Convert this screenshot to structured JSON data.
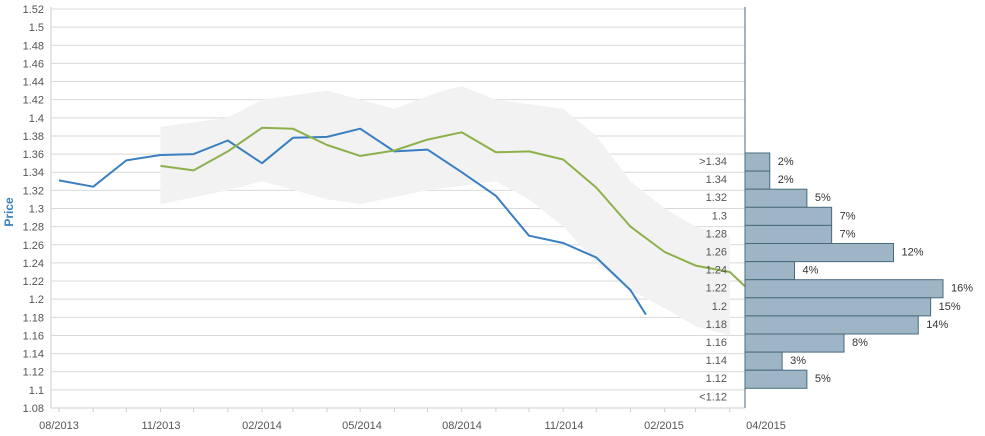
{
  "chart_data": {
    "type": "line",
    "ylabel": "Price",
    "ylim": [
      1.08,
      1.52
    ],
    "y_ticks": [
      "1.08",
      "1.1",
      "1.12",
      "1.14",
      "1.16",
      "1.18",
      "1.2",
      "1.22",
      "1.24",
      "1.26",
      "1.28",
      "1.3",
      "1.32",
      "1.34",
      "1.36",
      "1.38",
      "1.4",
      "1.42",
      "1.44",
      "1.46",
      "1.48",
      "1.5",
      "1.52"
    ],
    "x_tick_labels": [
      "08/2013",
      "11/2013",
      "02/2014",
      "05/2014",
      "08/2014",
      "11/2014",
      "02/2015",
      "04/2015"
    ],
    "grid": true,
    "series": [
      {
        "color": "#3a7fc1",
        "points": [
          {
            "x": "2013-08-01",
            "y": 1.331
          },
          {
            "x": "2013-09-01",
            "y": 1.324
          },
          {
            "x": "2013-10-01",
            "y": 1.353
          },
          {
            "x": "2013-11-01",
            "y": 1.359
          },
          {
            "x": "2013-12-01",
            "y": 1.36
          },
          {
            "x": "2014-01-01",
            "y": 1.375
          },
          {
            "x": "2014-02-01",
            "y": 1.35
          },
          {
            "x": "2014-03-01",
            "y": 1.378
          },
          {
            "x": "2014-04-01",
            "y": 1.379
          },
          {
            "x": "2014-05-01",
            "y": 1.388
          },
          {
            "x": "2014-06-01",
            "y": 1.363
          },
          {
            "x": "2014-07-01",
            "y": 1.365
          },
          {
            "x": "2014-08-01",
            "y": 1.34
          },
          {
            "x": "2014-09-01",
            "y": 1.314
          },
          {
            "x": "2014-10-01",
            "y": 1.27
          },
          {
            "x": "2014-11-01",
            "y": 1.262
          },
          {
            "x": "2014-12-01",
            "y": 1.246
          },
          {
            "x": "2015-01-01",
            "y": 1.21
          },
          {
            "x": "2015-01-15",
            "y": 1.183
          }
        ]
      },
      {
        "color": "#8db04c",
        "points": [
          {
            "x": "2013-11-01",
            "y": 1.347
          },
          {
            "x": "2013-12-01",
            "y": 1.342
          },
          {
            "x": "2014-01-01",
            "y": 1.363
          },
          {
            "x": "2014-02-01",
            "y": 1.389
          },
          {
            "x": "2014-03-01",
            "y": 1.388
          },
          {
            "x": "2014-04-01",
            "y": 1.37
          },
          {
            "x": "2014-05-01",
            "y": 1.358
          },
          {
            "x": "2014-06-01",
            "y": 1.364
          },
          {
            "x": "2014-07-01",
            "y": 1.376
          },
          {
            "x": "2014-08-01",
            "y": 1.384
          },
          {
            "x": "2014-09-01",
            "y": 1.362
          },
          {
            "x": "2014-10-01",
            "y": 1.363
          },
          {
            "x": "2014-11-01",
            "y": 1.354
          },
          {
            "x": "2014-12-01",
            "y": 1.323
          },
          {
            "x": "2015-01-01",
            "y": 1.28
          },
          {
            "x": "2015-02-01",
            "y": 1.252
          },
          {
            "x": "2015-03-01",
            "y": 1.237
          },
          {
            "x": "2015-04-01",
            "y": 1.23
          },
          {
            "x": "2015-04-15",
            "y": 1.214
          }
        ]
      }
    ],
    "band": {
      "color": "#f2f2f2",
      "upper": [
        {
          "x": "2013-11-01",
          "y": 1.39
        },
        {
          "x": "2014-01-01",
          "y": 1.4
        },
        {
          "x": "2014-02-01",
          "y": 1.42
        },
        {
          "x": "2014-04-01",
          "y": 1.43
        },
        {
          "x": "2014-06-01",
          "y": 1.41
        },
        {
          "x": "2014-07-15",
          "y": 1.43
        },
        {
          "x": "2014-08-01",
          "y": 1.435
        },
        {
          "x": "2014-09-01",
          "y": 1.42
        },
        {
          "x": "2014-11-01",
          "y": 1.41
        },
        {
          "x": "2014-12-01",
          "y": 1.38
        },
        {
          "x": "2015-01-01",
          "y": 1.33
        },
        {
          "x": "2015-02-01",
          "y": 1.3
        },
        {
          "x": "2015-03-01",
          "y": 1.28
        },
        {
          "x": "2015-04-01",
          "y": 1.27
        }
      ],
      "lower": [
        {
          "x": "2015-04-01",
          "y": 1.16
        },
        {
          "x": "2015-03-01",
          "y": 1.17
        },
        {
          "x": "2015-02-01",
          "y": 1.19
        },
        {
          "x": "2015-01-01",
          "y": 1.21
        },
        {
          "x": "2014-12-01",
          "y": 1.24
        },
        {
          "x": "2014-11-01",
          "y": 1.28
        },
        {
          "x": "2014-10-01",
          "y": 1.31
        },
        {
          "x": "2014-09-01",
          "y": 1.33
        },
        {
          "x": "2014-07-01",
          "y": 1.32
        },
        {
          "x": "2014-05-01",
          "y": 1.305
        },
        {
          "x": "2014-04-01",
          "y": 1.31
        },
        {
          "x": "2014-02-01",
          "y": 1.33
        },
        {
          "x": "2014-01-01",
          "y": 1.32
        },
        {
          "x": "2013-11-01",
          "y": 1.305
        }
      ]
    },
    "histogram": {
      "color": "#9db5c4",
      "bins": [
        {
          "label": ">1.34",
          "pct": "2%",
          "value": 2
        },
        {
          "label": "1.34",
          "pct": "2%",
          "value": 2
        },
        {
          "label": "1.32",
          "pct": "5%",
          "value": 5
        },
        {
          "label": "1.3",
          "pct": "7%",
          "value": 7
        },
        {
          "label": "1.28",
          "pct": "7%",
          "value": 7
        },
        {
          "label": "1.26",
          "pct": "12%",
          "value": 12
        },
        {
          "label": "1.24",
          "pct": "4%",
          "value": 4
        },
        {
          "label": "1.22",
          "pct": "16%",
          "value": 16
        },
        {
          "label": "1.2",
          "pct": "15%",
          "value": 15
        },
        {
          "label": "1.18",
          "pct": "14%",
          "value": 14
        },
        {
          "label": "1.16",
          "pct": "8%",
          "value": 8
        },
        {
          "label": "1.14",
          "pct": "3%",
          "value": 3
        },
        {
          "label": "1.12",
          "pct": "5%",
          "value": 5
        },
        {
          "label": "<1.12",
          "pct": "",
          "value": 0
        }
      ]
    }
  }
}
